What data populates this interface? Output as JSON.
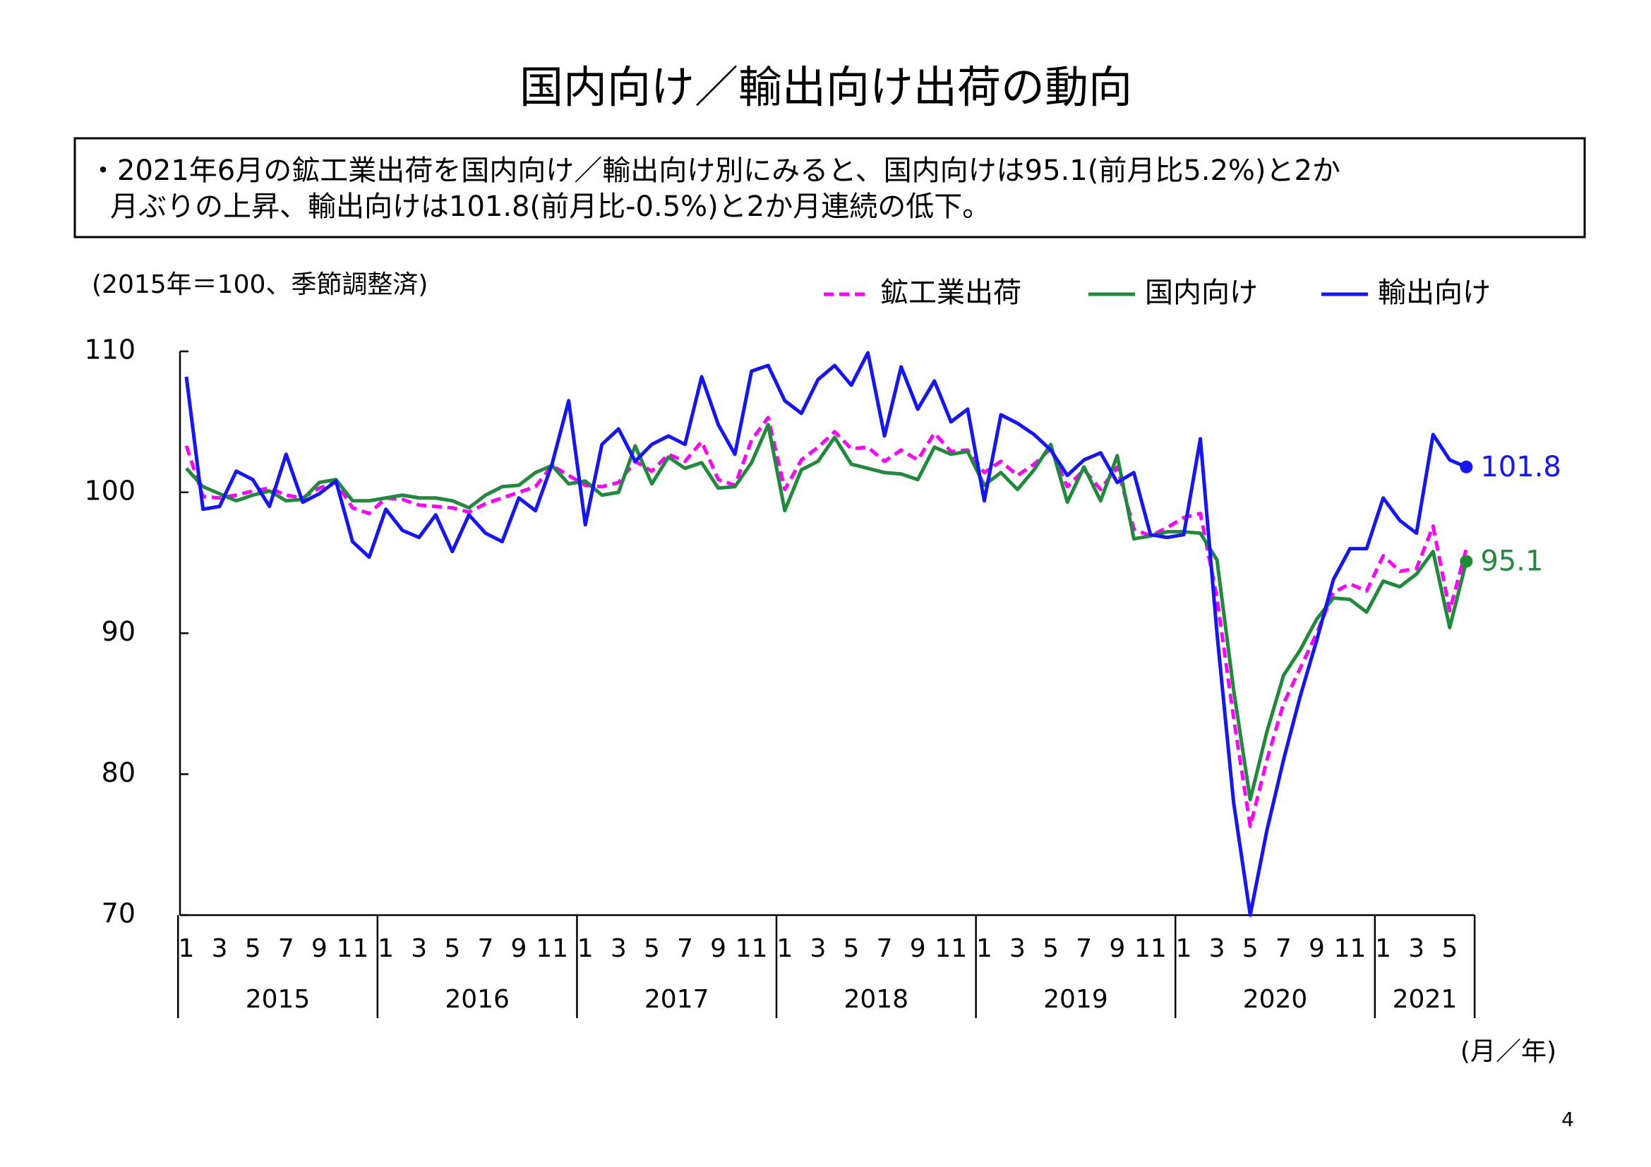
{
  "chart_data": {
    "type": "line",
    "title": "国内向け／輸出向け出荷の動向",
    "note": [
      "・2021年6月の鉱工業出荷を国内向け／輸出向け別にみると、国内向けは95.1(前月比5.2%)と2か",
      "月ぶりの上昇、輸出向けは101.8(前月比-0.5%)と2か月連続の低下。"
    ],
    "y_label": "(2015年＝100、季節調整済)",
    "x_label": "(月／年)",
    "page_number": "4",
    "years": [
      "2015",
      "2016",
      "2017",
      "2018",
      "2019",
      "2020",
      "2021"
    ],
    "categories": [
      "1",
      null,
      "3",
      null,
      "5",
      null,
      "7",
      null,
      "9",
      null,
      "11",
      null,
      "1",
      null,
      "3",
      null,
      "5",
      null,
      "7",
      null,
      "9",
      null,
      "11",
      null,
      "1",
      null,
      "3",
      null,
      "5",
      null,
      "7",
      null,
      "9",
      null,
      "11",
      null,
      "1",
      null,
      "3",
      null,
      "5",
      null,
      "7",
      null,
      "9",
      null,
      "11",
      null,
      "1",
      null,
      "3",
      null,
      "5",
      null,
      "7",
      null,
      "9",
      null,
      "11",
      null,
      "1",
      null,
      "3",
      null,
      "5",
      null,
      "7",
      null,
      "9",
      null,
      "11",
      null,
      "1",
      null,
      "3",
      null,
      "5",
      null
    ],
    "series": [
      {
        "name": "鉱工業出荷",
        "color": "#ff00ff",
        "dashed": true,
        "values": [
          103.3,
          99.7,
          99.6,
          99.8,
          100.1,
          100.3,
          99.8,
          99.6,
          100.3,
          100.7,
          98.9,
          98.5,
          99.6,
          99.5,
          99.1,
          99.0,
          98.9,
          98.6,
          99.2,
          99.6,
          100.0,
          100.4,
          101.9,
          101.2,
          100.5,
          100.4,
          100.7,
          102.2,
          101.5,
          102.7,
          102.2,
          103.6,
          100.9,
          100.5,
          103.7,
          105.3,
          100.2,
          102.3,
          103.2,
          104.3,
          103.1,
          103.2,
          102.2,
          103.0,
          102.3,
          104.2,
          102.9,
          103.0,
          101.4,
          102.2,
          101.2,
          102.0,
          103.1,
          100.4,
          101.6,
          100.2,
          101.8,
          97.4,
          96.9,
          97.5,
          98.2,
          98.5,
          92.5,
          84.0,
          76.3,
          81.0,
          85.0,
          87.5,
          90.0,
          92.9,
          93.5,
          93.0,
          95.5,
          94.4,
          94.6,
          97.6,
          91.6,
          96.0
        ]
      },
      {
        "name": "国内向け",
        "color": "#1f8a3a",
        "dashed": false,
        "end_label": true,
        "values": [
          101.7,
          100.4,
          99.9,
          99.4,
          99.8,
          100.1,
          99.4,
          99.5,
          100.7,
          100.9,
          99.4,
          99.4,
          99.6,
          99.8,
          99.6,
          99.6,
          99.4,
          98.9,
          99.8,
          100.4,
          100.5,
          101.4,
          101.9,
          100.6,
          100.8,
          99.8,
          100.0,
          103.3,
          100.6,
          102.5,
          101.7,
          102.1,
          100.3,
          100.4,
          102.1,
          104.8,
          98.7,
          101.6,
          102.2,
          103.9,
          102.0,
          101.7,
          101.4,
          101.3,
          100.9,
          103.2,
          102.7,
          102.9,
          100.5,
          101.4,
          100.2,
          101.6,
          103.4,
          99.3,
          101.8,
          99.4,
          102.6,
          96.7,
          96.9,
          97.2,
          97.2,
          97.1,
          95.2,
          86.0,
          78.2,
          83.0,
          87.0,
          88.8,
          91.0,
          92.5,
          92.4,
          91.5,
          93.7,
          93.3,
          94.2,
          95.8,
          90.4,
          95.1
        ]
      },
      {
        "name": "輸出向け",
        "color": "#1414ff",
        "dashed": false,
        "end_label": true,
        "values": [
          108.2,
          98.8,
          99.0,
          101.5,
          100.9,
          99.0,
          102.7,
          99.3,
          99.9,
          100.8,
          96.5,
          95.4,
          98.8,
          97.3,
          96.8,
          98.4,
          95.8,
          98.4,
          97.1,
          96.5,
          99.6,
          98.7,
          102.0,
          106.5,
          97.7,
          103.4,
          104.5,
          102.2,
          103.4,
          104.0,
          103.4,
          108.2,
          104.8,
          102.7,
          108.6,
          109.0,
          106.5,
          105.6,
          108.0,
          109.0,
          107.6,
          109.9,
          104.0,
          108.9,
          105.9,
          107.9,
          105.0,
          105.9,
          99.4,
          105.5,
          104.9,
          104.1,
          103.0,
          101.2,
          102.3,
          102.8,
          100.7,
          101.4,
          97.0,
          96.8,
          97.0,
          103.8,
          90.0,
          78.0,
          70.0,
          76.0,
          81.0,
          85.5,
          89.5,
          93.8,
          96.0,
          96.0,
          99.6,
          98.0,
          97.1,
          104.1,
          102.3,
          101.8
        ]
      }
    ],
    "ylim": [
      70,
      110
    ],
    "yticks": [
      70,
      80,
      90,
      100,
      110
    ],
    "grid": false,
    "legend": "top-right"
  }
}
